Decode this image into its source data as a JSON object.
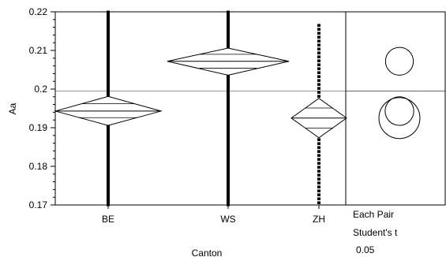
{
  "chart_data": {
    "type": "scatter",
    "subtype": "oneway-anova-means-diamonds",
    "xlabel": "Canton",
    "ylabel": "Aa",
    "ylim": [
      0.17,
      0.22
    ],
    "yticks": [
      "0.17",
      "0.18",
      "0.19",
      "0.2",
      "0.21",
      "0.22"
    ],
    "categories": [
      "BE",
      "WS",
      "ZH"
    ],
    "grand_mean": 0.1995,
    "groups": [
      {
        "name": "BE",
        "mean": 0.1943,
        "ci_lower": 0.1906,
        "ci_upper": 0.1981,
        "ci_bar_lower": 0.1926,
        "ci_bar_upper": 0.1962,
        "y_min": 0.17,
        "y_max": 0.22
      },
      {
        "name": "WS",
        "mean": 0.2072,
        "ci_lower": 0.2036,
        "ci_upper": 0.2106,
        "ci_bar_lower": 0.2054,
        "ci_bar_upper": 0.209,
        "y_min": 0.17,
        "y_max": 0.22
      },
      {
        "name": "ZH",
        "mean": 0.1925,
        "ci_lower": 0.1874,
        "ci_upper": 0.1976,
        "ci_bar_lower": 0.1899,
        "ci_bar_upper": 0.1951,
        "y_min": 0.17,
        "y_max": 0.2165
      }
    ],
    "comparison_circles": [
      {
        "name": "WS",
        "center": 0.2072,
        "radius": 0.0036
      },
      {
        "name": "BE",
        "center": 0.1943,
        "radius": 0.0037
      },
      {
        "name": "ZH",
        "center": 0.1925,
        "radius": 0.0053
      }
    ],
    "comparison_label": [
      "Each Pair",
      "Student's t",
      "0.05"
    ]
  }
}
